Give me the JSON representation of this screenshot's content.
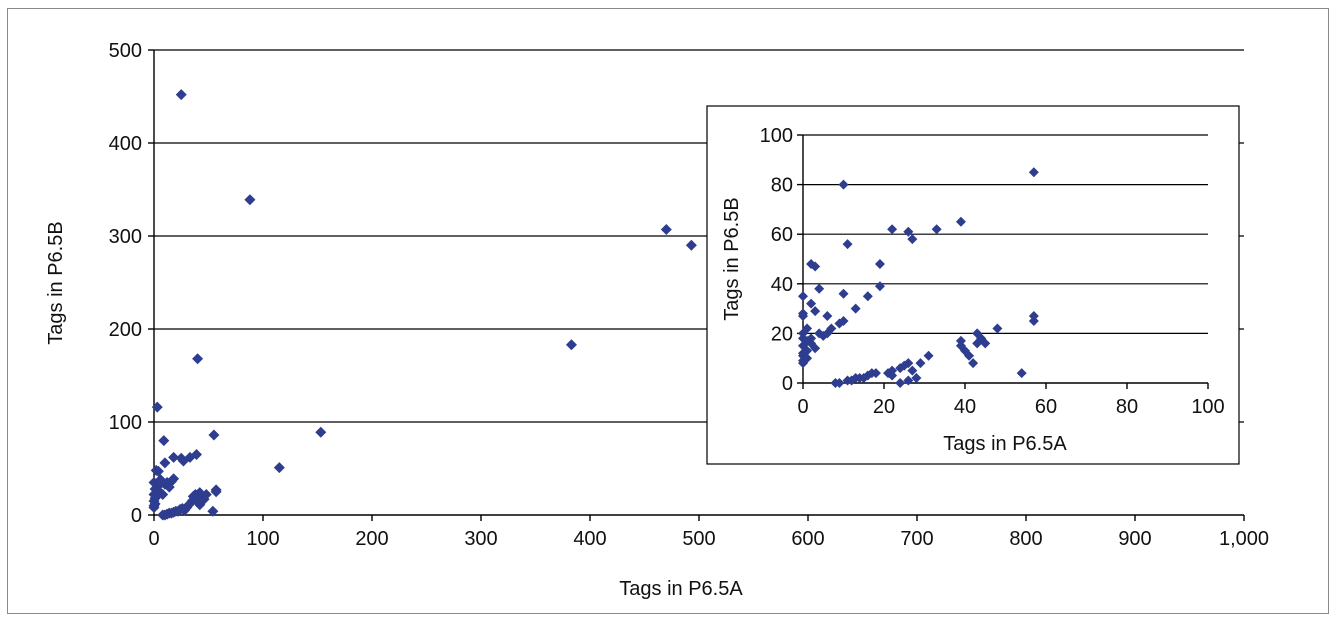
{
  "chart_data": [
    {
      "type": "scatter",
      "title": "",
      "xlabel": "Tags in P6.5A",
      "ylabel": "Tags in P6.5B",
      "xlim": [
        0,
        1000
      ],
      "ylim": [
        0,
        500
      ],
      "x_ticks": [
        "0",
        "100",
        "200",
        "300",
        "400",
        "500",
        "600",
        "700",
        "800",
        "900",
        "1,000"
      ],
      "y_ticks": [
        "0",
        "100",
        "200",
        "300",
        "400",
        "500"
      ],
      "grid": "horizontal",
      "marker_color": "#2E3D8F",
      "points": [
        [
          25,
          452
        ],
        [
          88,
          339
        ],
        [
          40,
          168
        ],
        [
          3,
          116
        ],
        [
          470,
          307
        ],
        [
          493,
          290
        ],
        [
          383,
          183
        ],
        [
          153,
          89
        ],
        [
          115,
          51
        ],
        [
          55,
          86
        ],
        [
          9,
          80
        ],
        [
          18,
          62
        ],
        [
          25,
          61
        ],
        [
          27,
          58
        ],
        [
          33,
          62
        ],
        [
          39,
          65
        ],
        [
          10,
          56
        ],
        [
          2,
          48
        ],
        [
          4,
          47
        ],
        [
          0,
          35
        ],
        [
          1,
          28
        ],
        [
          0,
          22
        ],
        [
          1,
          18
        ],
        [
          0,
          15
        ],
        [
          1,
          12
        ],
        [
          0,
          10
        ],
        [
          0,
          8
        ],
        [
          2,
          20
        ],
        [
          3,
          30
        ],
        [
          5,
          25
        ],
        [
          6,
          38
        ],
        [
          8,
          22
        ],
        [
          10,
          33
        ],
        [
          12,
          35
        ],
        [
          14,
          30
        ],
        [
          16,
          36
        ],
        [
          18,
          39
        ],
        [
          8,
          0
        ],
        [
          10,
          0
        ],
        [
          12,
          1
        ],
        [
          14,
          2
        ],
        [
          16,
          2
        ],
        [
          18,
          3
        ],
        [
          20,
          4
        ],
        [
          22,
          4
        ],
        [
          24,
          6
        ],
        [
          26,
          7
        ],
        [
          28,
          5
        ],
        [
          30,
          8
        ],
        [
          32,
          11
        ],
        [
          38,
          17
        ],
        [
          40,
          16
        ],
        [
          42,
          11
        ],
        [
          44,
          20
        ],
        [
          46,
          17
        ],
        [
          48,
          22
        ],
        [
          54,
          4
        ],
        [
          57,
          25
        ],
        [
          57,
          27
        ],
        [
          35,
          15
        ],
        [
          36,
          20
        ],
        [
          38,
          22
        ],
        [
          42,
          24
        ]
      ]
    },
    {
      "type": "scatter",
      "title": "",
      "xlabel": "Tags in P6.5A",
      "ylabel": "Tags in P6.5B",
      "xlim": [
        0,
        100
      ],
      "ylim": [
        0,
        100
      ],
      "x_ticks": [
        "0",
        "20",
        "40",
        "60",
        "80",
        "100"
      ],
      "y_ticks": [
        "0",
        "20",
        "40",
        "60",
        "80",
        "100"
      ],
      "grid": "horizontal",
      "marker_color": "#2E3D8F",
      "points": [
        [
          57,
          85
        ],
        [
          10,
          80
        ],
        [
          22,
          62
        ],
        [
          26,
          61
        ],
        [
          27,
          58
        ],
        [
          33,
          62
        ],
        [
          39,
          65
        ],
        [
          11,
          56
        ],
        [
          2,
          48
        ],
        [
          3,
          47
        ],
        [
          19,
          48
        ],
        [
          19,
          39
        ],
        [
          10,
          36
        ],
        [
          0,
          35
        ],
        [
          0,
          28
        ],
        [
          0,
          27
        ],
        [
          2,
          32
        ],
        [
          3,
          29
        ],
        [
          4,
          38
        ],
        [
          6,
          27
        ],
        [
          7,
          22
        ],
        [
          9,
          24
        ],
        [
          10,
          25
        ],
        [
          13,
          30
        ],
        [
          16,
          35
        ],
        [
          1,
          22
        ],
        [
          0,
          20
        ],
        [
          0,
          18
        ],
        [
          1,
          17
        ],
        [
          0,
          15
        ],
        [
          2,
          16
        ],
        [
          3,
          14
        ],
        [
          1,
          13
        ],
        [
          0,
          12
        ],
        [
          0,
          11
        ],
        [
          1,
          10
        ],
        [
          0,
          9
        ],
        [
          0,
          8
        ],
        [
          2,
          18
        ],
        [
          4,
          20
        ],
        [
          5,
          19
        ],
        [
          6,
          20
        ],
        [
          8,
          0
        ],
        [
          9,
          0
        ],
        [
          11,
          1
        ],
        [
          12,
          1
        ],
        [
          13,
          2
        ],
        [
          14,
          2
        ],
        [
          15,
          2
        ],
        [
          16,
          3
        ],
        [
          17,
          4
        ],
        [
          18,
          4
        ],
        [
          21,
          4
        ],
        [
          22,
          5
        ],
        [
          22,
          3
        ],
        [
          24,
          6
        ],
        [
          25,
          7
        ],
        [
          26,
          8
        ],
        [
          24,
          0
        ],
        [
          26,
          1
        ],
        [
          27,
          5
        ],
        [
          28,
          2
        ],
        [
          29,
          8
        ],
        [
          31,
          11
        ],
        [
          39,
          15
        ],
        [
          39,
          17
        ],
        [
          41,
          11
        ],
        [
          42,
          8
        ],
        [
          43,
          16
        ],
        [
          43,
          20
        ],
        [
          44,
          18
        ],
        [
          45,
          16
        ],
        [
          48,
          22
        ],
        [
          54,
          4
        ],
        [
          57,
          25
        ],
        [
          57,
          27
        ],
        [
          40,
          13
        ]
      ]
    }
  ]
}
